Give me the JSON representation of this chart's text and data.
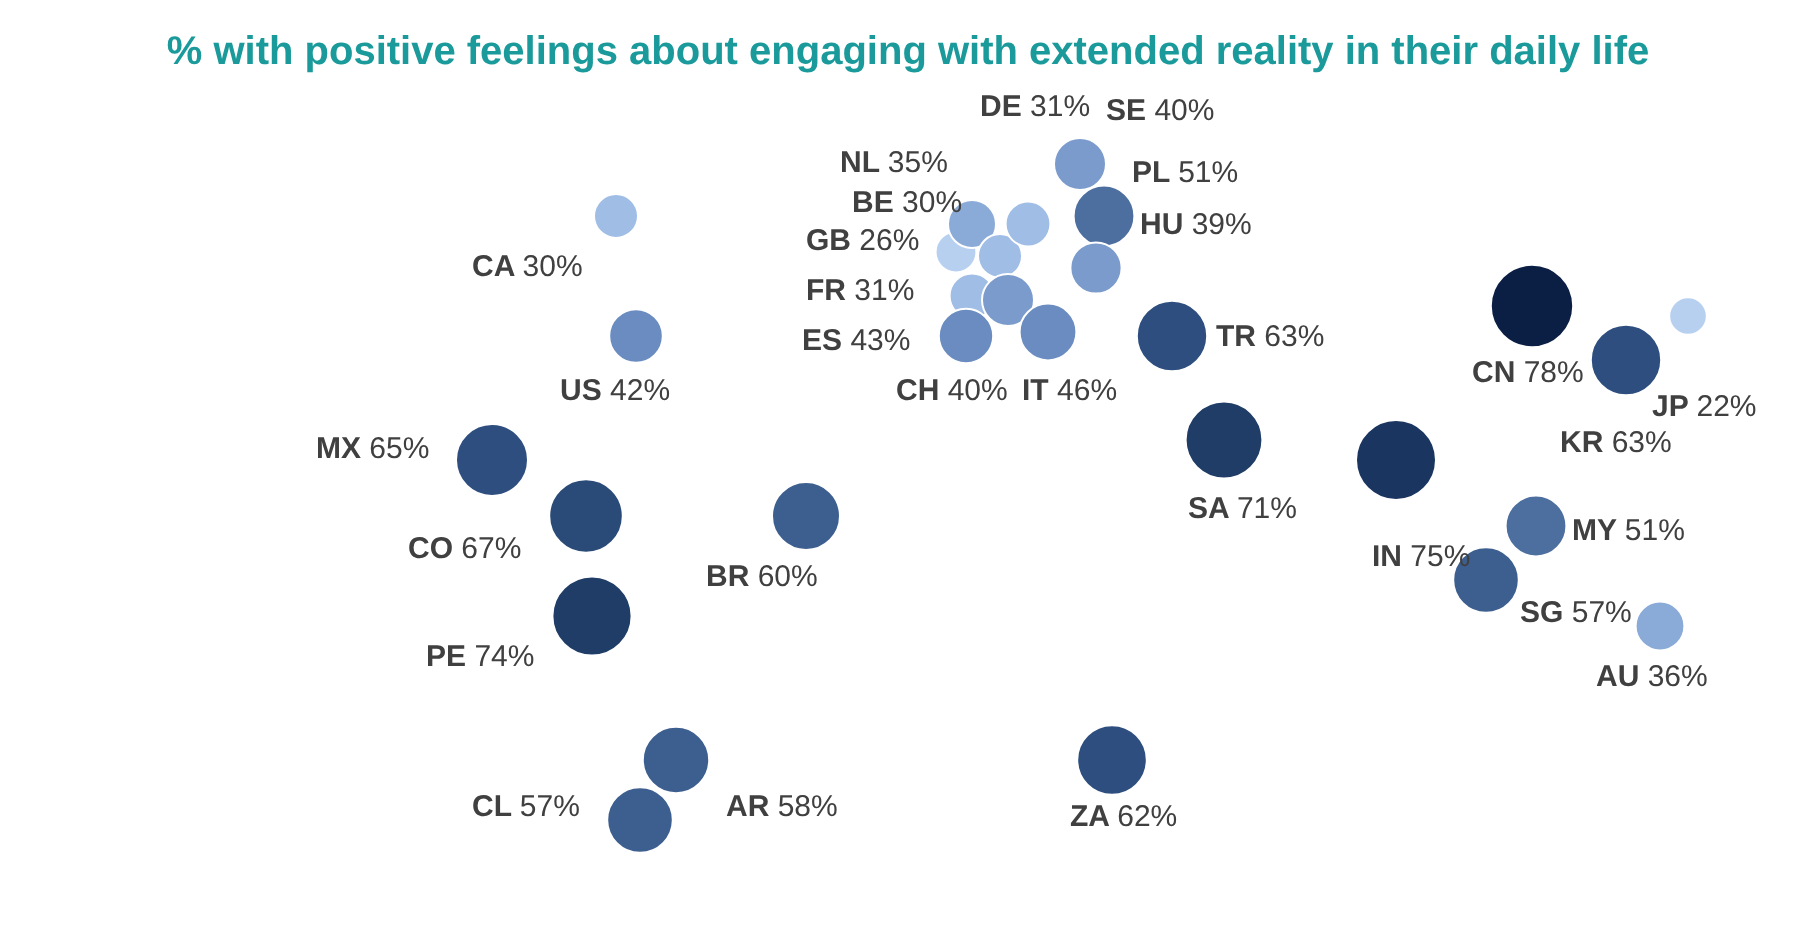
{
  "chart_data": {
    "type": "other",
    "title": "% with positive feelings about engaging with extended reality in their daily life",
    "categories": [
      "CA",
      "US",
      "MX",
      "CO",
      "PE",
      "BR",
      "CL",
      "AR",
      "GB",
      "NL",
      "BE",
      "DE",
      "SE",
      "PL",
      "FR",
      "HU",
      "ES",
      "CH",
      "IT",
      "TR",
      "SA",
      "IN",
      "CN",
      "KR",
      "JP",
      "MY",
      "SG",
      "ZA",
      "AU"
    ],
    "values": [
      30,
      42,
      65,
      67,
      74,
      60,
      57,
      58,
      26,
      35,
      30,
      31,
      40,
      51,
      31,
      39,
      43,
      40,
      46,
      63,
      71,
      75,
      78,
      63,
      22,
      51,
      57,
      62,
      36
    ],
    "value_labels": [
      "30%",
      "42%",
      "65%",
      "67%",
      "74%",
      "60%",
      "57%",
      "58%",
      "26%",
      "35%",
      "30%",
      "31%",
      "40%",
      "51%",
      "31%",
      "39%",
      "43%",
      "40%",
      "46%",
      "63%",
      "71%",
      "75%",
      "78%",
      "63%",
      "22%",
      "51%",
      "57%",
      "62%",
      "36%"
    ],
    "colors": [
      "#a0bde6",
      "#6a8cc0",
      "#2d4e7e",
      "#2a4a78",
      "#1f3d66",
      "#3d5f8f",
      "#3d5f8f",
      "#3d5f8f",
      "#b7d0f0",
      "#8aaad8",
      "#a0bde6",
      "#a0bde6",
      "#7a9bcc",
      "#4d6fa0",
      "#a0bde6",
      "#7a9bcc",
      "#6a8cc0",
      "#7a9bcc",
      "#6a8cc0",
      "#2d4e7e",
      "#1f3d66",
      "#1a3560",
      "#0b1f45",
      "#2d4e7e",
      "#b7d0f0",
      "#4d6fa0",
      "#3d5f8f",
      "#2d4e7e",
      "#8aaad8"
    ]
  }
}
